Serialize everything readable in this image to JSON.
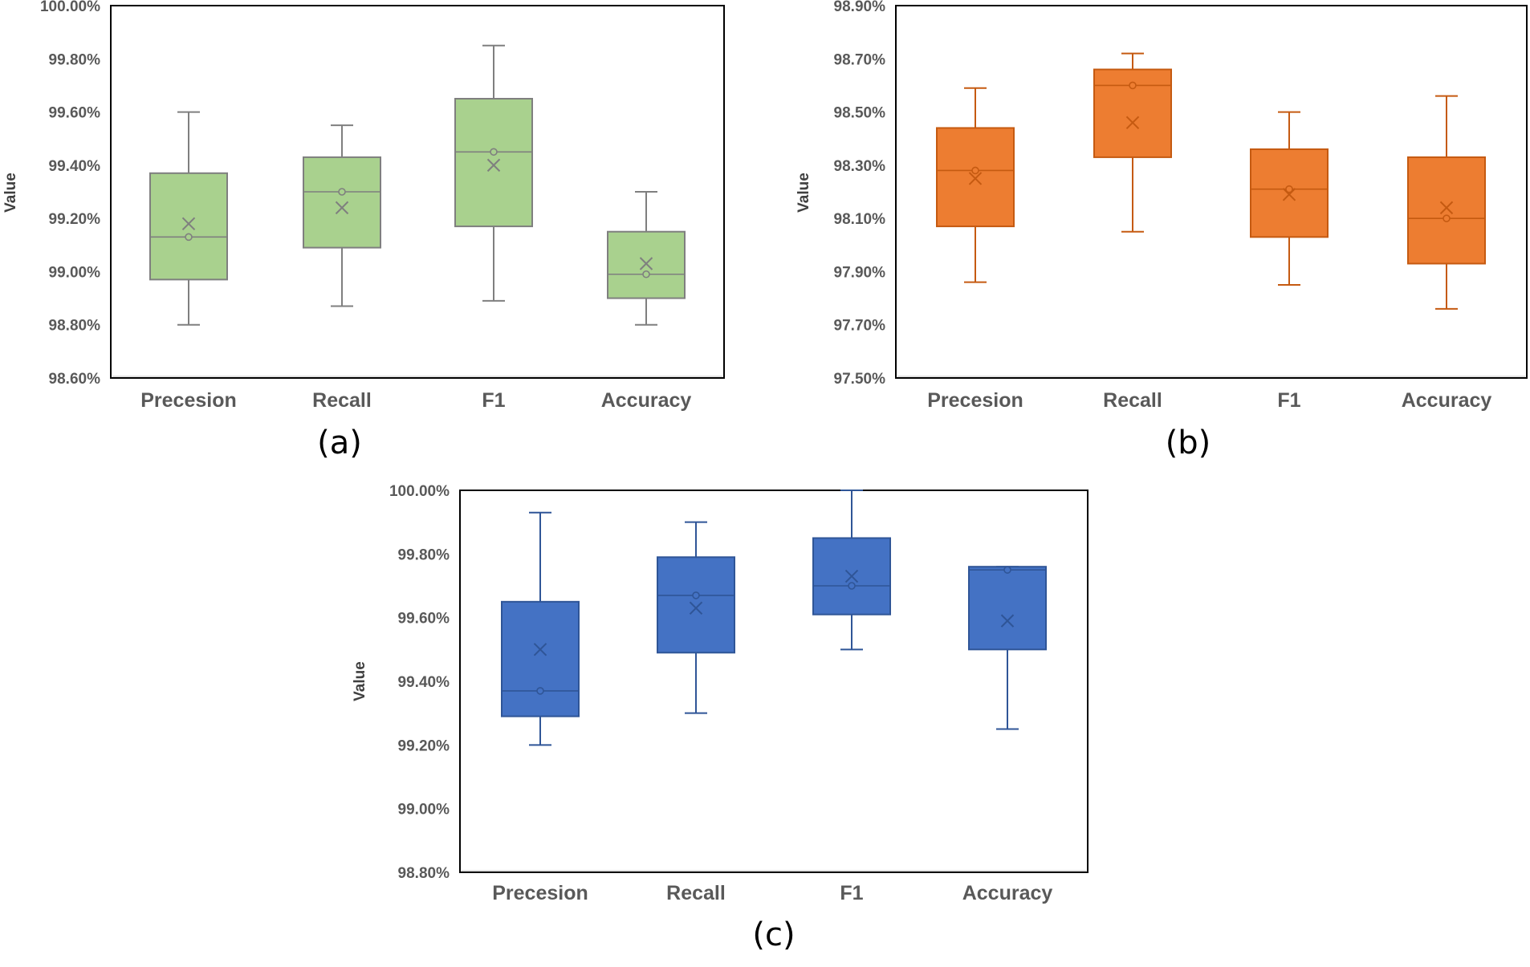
{
  "chart_data": [
    {
      "type": "box",
      "panel_label": "(a)",
      "ylabel": "Value",
      "categories": [
        "Precesion",
        "Recall",
        "F1",
        "Accuracy"
      ],
      "ylim": [
        0.986,
        1.0
      ],
      "ytick_step": 0.002,
      "y_tick_labels": [
        "100.00%",
        "99.80%",
        "99.60%",
        "99.40%",
        "99.20%",
        "99.00%",
        "98.80%",
        "98.60%"
      ],
      "color": "#a9d18e",
      "edge_color": "#7f7f7f",
      "boxes": [
        {
          "category": "Precesion",
          "min": 0.988,
          "q1": 0.9897,
          "median": 0.9913,
          "q3": 0.9937,
          "max": 0.996,
          "mean": 0.9918
        },
        {
          "category": "Recall",
          "min": 0.9887,
          "q1": 0.9909,
          "median": 0.993,
          "q3": 0.9943,
          "max": 0.9955,
          "mean": 0.9924
        },
        {
          "category": "F1",
          "min": 0.9889,
          "q1": 0.9917,
          "median": 0.9945,
          "q3": 0.9965,
          "max": 0.9985,
          "mean": 0.994
        },
        {
          "category": "Accuracy",
          "min": 0.988,
          "q1": 0.989,
          "median": 0.9899,
          "q3": 0.9915,
          "max": 0.993,
          "mean": 0.9903
        }
      ]
    },
    {
      "type": "box",
      "panel_label": "(b)",
      "ylabel": "Value",
      "categories": [
        "Precesion",
        "Recall",
        "F1",
        "Accuracy"
      ],
      "ylim": [
        0.975,
        0.989
      ],
      "ytick_step": 0.002,
      "y_tick_labels": [
        "98.90%",
        "98.70%",
        "98.50%",
        "98.30%",
        "98.10%",
        "97.90%",
        "97.70%",
        "97.50%"
      ],
      "color": "#ed7d31",
      "edge_color": "#c55a11",
      "boxes": [
        {
          "category": "Precesion",
          "min": 0.9786,
          "q1": 0.9807,
          "median": 0.9828,
          "q3": 0.9844,
          "max": 0.9859,
          "mean": 0.9825
        },
        {
          "category": "Recall",
          "min": 0.9805,
          "q1": 0.9833,
          "median": 0.986,
          "q3": 0.9866,
          "max": 0.9872,
          "mean": 0.9846
        },
        {
          "category": "F1",
          "min": 0.9785,
          "q1": 0.9803,
          "median": 0.9821,
          "q3": 0.9836,
          "max": 0.985,
          "mean": 0.9819
        },
        {
          "category": "Accuracy",
          "min": 0.9776,
          "q1": 0.9793,
          "median": 0.981,
          "q3": 0.9833,
          "max": 0.9856,
          "mean": 0.9814
        }
      ]
    },
    {
      "type": "box",
      "panel_label": "(c)",
      "ylabel": "Value",
      "categories": [
        "Precesion",
        "Recall",
        "F1",
        "Accuracy"
      ],
      "ylim": [
        0.988,
        1.0
      ],
      "ytick_step": 0.002,
      "y_tick_labels": [
        "100.00%",
        "99.80%",
        "99.60%",
        "99.40%",
        "99.20%",
        "99.00%",
        "98.80%"
      ],
      "color": "#4472c4",
      "edge_color": "#2f5597",
      "boxes": [
        {
          "category": "Precesion",
          "min": 0.992,
          "q1": 0.9929,
          "median": 0.9937,
          "q3": 0.9965,
          "max": 0.9993,
          "mean": 0.995
        },
        {
          "category": "Recall",
          "min": 0.993,
          "q1": 0.9949,
          "median": 0.9967,
          "q3": 0.9979,
          "max": 0.999,
          "mean": 0.9963
        },
        {
          "category": "F1",
          "min": 0.995,
          "q1": 0.9961,
          "median": 0.997,
          "q3": 0.9985,
          "max": 1.0,
          "mean": 0.9973
        },
        {
          "category": "Accuracy",
          "min": 0.9925,
          "q1": 0.995,
          "median": 0.9975,
          "q3": 0.9976,
          "max": 0.9976,
          "mean": 0.9959
        }
      ]
    }
  ]
}
